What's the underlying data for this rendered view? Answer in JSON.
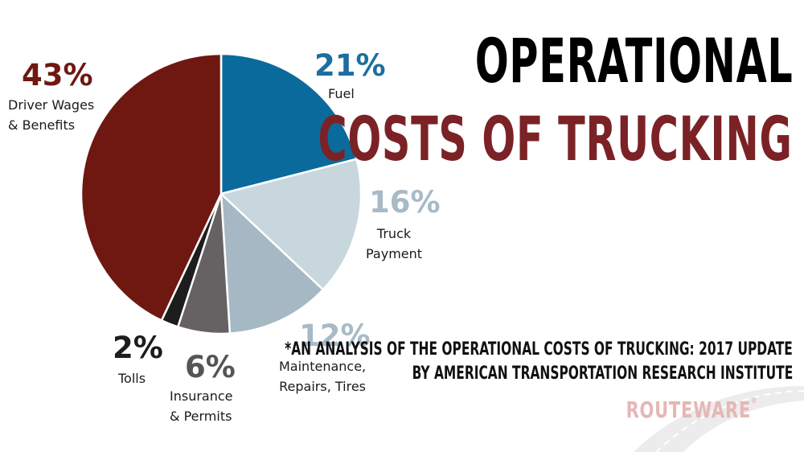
{
  "title": {
    "line1": "OPERATIONAL",
    "line2": "COSTS OF TRUCKING"
  },
  "source": {
    "line1": "*AN ANALYSIS OF THE OPERATIONAL COSTS OF TRUCKING: 2017 UPDATE",
    "line2": "BY AMERICAN TRANSPORTATION RESEARCH INSTITUTE"
  },
  "logo": {
    "text": "ROUTEWARE",
    "mark": "®"
  },
  "chart_data": {
    "type": "pie",
    "title": "OPERATIONAL COSTS OF TRUCKING",
    "unit": "%",
    "slices": [
      {
        "label": "Fuel",
        "value": 21,
        "value_label": "21%",
        "color": "#0b6a9c"
      },
      {
        "label": "Truck Payment",
        "value": 16,
        "value_label": "16%",
        "color": "#c8d6de"
      },
      {
        "label": "Maintenance, Repairs, Tires",
        "value": 12,
        "value_label": "12%",
        "color": "#a5b8c4"
      },
      {
        "label": "Insurance & Permits",
        "value": 6,
        "value_label": "6%",
        "color": "#666263"
      },
      {
        "label": "Tolls",
        "value": 2,
        "value_label": "2%",
        "color": "#1d1d1d"
      },
      {
        "label": "Driver Wages & Benefits",
        "value": 43,
        "value_label": "43%",
        "color": "#6e1811"
      }
    ],
    "label_lines": {
      "fuel": [
        "Fuel"
      ],
      "truck": [
        "Truck",
        "Payment"
      ],
      "maint": [
        "Maintenance,",
        "Repairs, Tires"
      ],
      "ins": [
        "Insurance",
        "& Permits"
      ],
      "tolls": [
        "Tolls"
      ],
      "wages": [
        "Driver Wages",
        "& Benefits"
      ]
    },
    "pct_colors": {
      "fuel": "#1d6e9e",
      "truck": "#a7bac6",
      "maint": "#a7bac6",
      "ins": "#555",
      "tolls": "#1d1d1d",
      "wages": "#6e1811"
    }
  }
}
